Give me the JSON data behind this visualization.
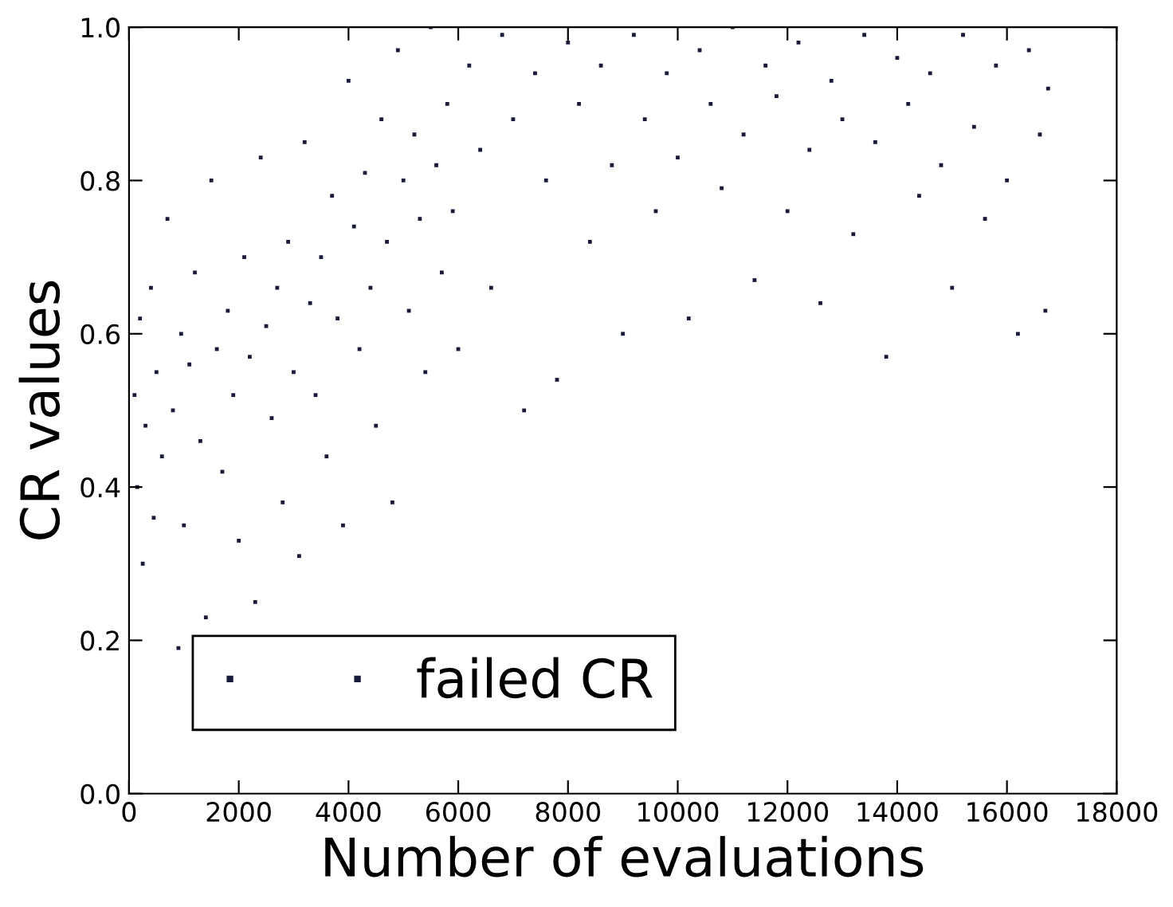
{
  "chart_data": {
    "type": "scatter",
    "xlabel": "Number of evaluations",
    "ylabel": "CR values",
    "xlim": [
      0,
      18000
    ],
    "xticks": [
      0,
      2000,
      4000,
      6000,
      8000,
      10000,
      12000,
      14000,
      16000,
      18000
    ],
    "ylim": [
      0.0,
      1.0
    ],
    "yticks": [
      {
        "value": 0.0,
        "label": "0.0"
      },
      {
        "value": 0.2,
        "label": "0.2"
      },
      {
        "value": 0.4,
        "label": "0.4"
      },
      {
        "value": 0.6,
        "label": "0.6"
      },
      {
        "value": 0.8,
        "label": "0.8"
      },
      {
        "value": 1.0,
        "label": "1.0"
      }
    ],
    "grid": false,
    "legend": "bottom left",
    "marker": "square",
    "series": [
      {
        "name": "failed CR",
        "color": "#1a1a3a",
        "x": [
          100,
          150,
          200,
          250,
          300,
          400,
          450,
          500,
          600,
          700,
          800,
          900,
          950,
          1000,
          1100,
          1200,
          1300,
          1400,
          1500,
          1600,
          1700,
          1800,
          1900,
          2000,
          2100,
          2200,
          2300,
          2400,
          2500,
          2600,
          2700,
          2800,
          2900,
          3000,
          3100,
          3200,
          3300,
          3400,
          3500,
          3600,
          3700,
          3800,
          3900,
          4000,
          4100,
          4200,
          4300,
          4400,
          4500,
          4600,
          4700,
          4800,
          4900,
          5000,
          5100,
          5200,
          5300,
          5400,
          5500,
          5600,
          5700,
          5800,
          5900,
          6000,
          6200,
          6400,
          6600,
          6800,
          7000,
          7200,
          7400,
          7600,
          7800,
          8000,
          8200,
          8400,
          8600,
          8800,
          9000,
          9200,
          9400,
          9600,
          9800,
          10000,
          10200,
          10400,
          10600,
          10800,
          11000,
          11200,
          11400,
          11600,
          11800,
          12000,
          12200,
          12400,
          12600,
          12800,
          13000,
          13200,
          13400,
          13600,
          13800,
          14000,
          14200,
          14400,
          14600,
          14800,
          15000,
          15200,
          15400,
          15600,
          15800,
          16000,
          16200,
          16400,
          16600,
          16700,
          16750
        ],
        "values": [
          0.52,
          0.4,
          0.62,
          0.3,
          0.48,
          0.66,
          0.36,
          0.55,
          0.44,
          0.75,
          0.5,
          0.19,
          0.6,
          0.35,
          0.56,
          0.68,
          0.46,
          0.23,
          0.8,
          0.58,
          0.42,
          0.63,
          0.52,
          0.33,
          0.7,
          0.57,
          0.25,
          0.83,
          0.61,
          0.49,
          0.66,
          0.38,
          0.72,
          0.55,
          0.31,
          0.85,
          0.64,
          0.52,
          0.7,
          0.44,
          0.78,
          0.62,
          0.35,
          0.93,
          0.74,
          0.58,
          0.81,
          0.66,
          0.48,
          0.88,
          0.72,
          0.38,
          0.97,
          0.8,
          0.63,
          0.86,
          0.75,
          0.55,
          1.0,
          0.82,
          0.68,
          0.9,
          0.76,
          0.58,
          0.95,
          0.84,
          0.66,
          0.99,
          0.88,
          0.5,
          0.94,
          0.8,
          0.54,
          0.98,
          0.9,
          0.72,
          0.95,
          0.82,
          0.6,
          0.99,
          0.88,
          0.76,
          0.94,
          0.83,
          0.62,
          0.97,
          0.9,
          0.79,
          1.0,
          0.86,
          0.67,
          0.95,
          0.91,
          0.76,
          0.98,
          0.84,
          0.64,
          0.93,
          0.88,
          0.73,
          0.99,
          0.85,
          0.57,
          0.96,
          0.9,
          0.78,
          0.94,
          0.82,
          0.66,
          0.99,
          0.87,
          0.75,
          0.95,
          0.8,
          0.6,
          0.97,
          0.86,
          0.63,
          0.92
        ]
      }
    ]
  }
}
